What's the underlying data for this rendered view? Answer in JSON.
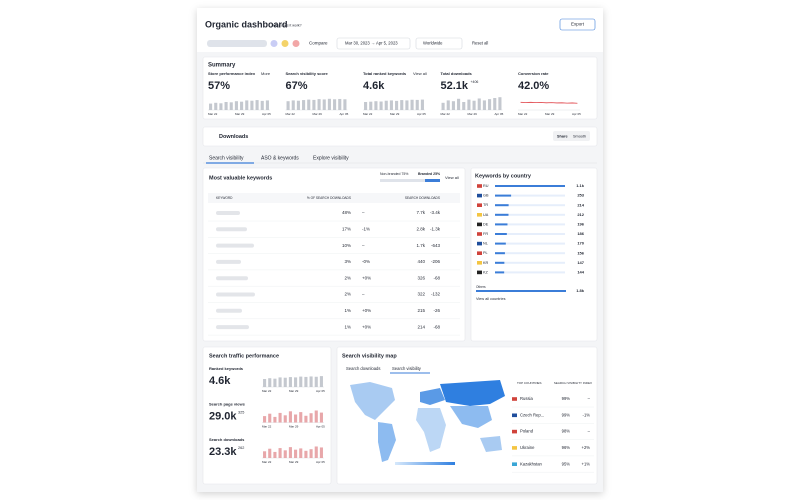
{
  "header": {
    "title": "Organic dashboard",
    "help": "How does it work?",
    "export": "Export"
  },
  "toolbar": {
    "compare": "Compare",
    "date_range": "Mar 30, 2023 → Apr 5, 2023",
    "region": "Worldwide",
    "reset": "Reset all"
  },
  "summary": {
    "title": "Summary",
    "spark_dates": [
      "Mar 22",
      "Mar 29",
      "Apr 05"
    ],
    "bars_ylim": [
      0,
      100
    ],
    "cards": [
      {
        "label": "Store performance index",
        "link": "More",
        "value": "57%",
        "chart": "bar",
        "values": [
          40,
          45,
          42,
          50,
          48,
          55,
          52,
          60,
          58,
          62,
          57,
          60
        ]
      },
      {
        "label": "Search visibility score",
        "value": "67%",
        "chart": "bar",
        "values": [
          55,
          60,
          58,
          62,
          65,
          63,
          68,
          66,
          70,
          67,
          69,
          67
        ]
      },
      {
        "label": "Total ranked keywords",
        "link": "View all",
        "value": "4.6k",
        "chart": "bar",
        "values": [
          50,
          52,
          55,
          53,
          58,
          60,
          57,
          62,
          60,
          64,
          63,
          65
        ]
      },
      {
        "label": "Total downloads",
        "value": "52.1k",
        "delta": "+406",
        "chart": "bar",
        "values": [
          45,
          60,
          55,
          70,
          50,
          65,
          58,
          72,
          60,
          68,
          75,
          80
        ]
      },
      {
        "label": "Conversion rate",
        "value": "42.0%",
        "chart": "line",
        "values": [
          48,
          47,
          48,
          46,
          47,
          45,
          46,
          44,
          45,
          43,
          44,
          42
        ]
      }
    ]
  },
  "downloads": {
    "title": "Downloads",
    "toggles": [
      "Share",
      "Smooth"
    ]
  },
  "tabs": [
    "Search visibility",
    "ASO & keywords",
    "Explore visibility"
  ],
  "keywords": {
    "title": "Most valuable keywords",
    "legend": [
      "Non-branded 75%",
      "Branded 25%"
    ],
    "link": "View all",
    "columns": [
      "KEYWORD",
      "% OF SEARCH DOWNLOADS",
      "SEARCH DOWNLOADS"
    ],
    "rows": [
      [
        "48%",
        "–",
        "7.7k",
        "-3.4k"
      ],
      [
        "17%",
        "-1%",
        "2.8k",
        "-1.3k"
      ],
      [
        "10%",
        "–",
        "1.7k",
        "-643"
      ],
      [
        "3%",
        "-0%",
        "440",
        "-206"
      ],
      [
        "2%",
        "+0%",
        "326",
        "-68"
      ],
      [
        "2%",
        "–",
        "322",
        "-132"
      ],
      [
        "1%",
        "+0%",
        "215",
        "-26"
      ],
      [
        "1%",
        "+0%",
        "214",
        "-68"
      ]
    ]
  },
  "countries": {
    "title": "Keywords by country",
    "codes": [
      "RU",
      "GB",
      "TR",
      "UA",
      "DE",
      "FR",
      "NL",
      "PL",
      "KR",
      "KZ"
    ],
    "values": [
      1100,
      253,
      214,
      212,
      196,
      186,
      170,
      156,
      147,
      144
    ],
    "value_labels": [
      "1.1k",
      "253",
      "214",
      "212",
      "196",
      "186",
      "170",
      "156",
      "147",
      "144"
    ],
    "xlim": [
      0,
      1100
    ],
    "others": {
      "label": "Others",
      "value": 1800,
      "value_label": "1.8k",
      "xlim": [
        0,
        1800
      ]
    },
    "link": "View all countries"
  },
  "traffic": {
    "title": "Search traffic performance",
    "ylim": [
      0,
      100
    ],
    "items": [
      {
        "label": "Ranked keywords",
        "value": "4.6k",
        "values": [
          50,
          55,
          52,
          60,
          58,
          62,
          60,
          65,
          63,
          66,
          64,
          68
        ]
      },
      {
        "label": "Search page views",
        "value": "29.0k",
        "delta": "325",
        "values": [
          40,
          55,
          35,
          60,
          45,
          70,
          50,
          65,
          42,
          58,
          75,
          62
        ]
      },
      {
        "label": "Search downloads",
        "value": "23.3k",
        "delta": "262",
        "values": [
          42,
          58,
          38,
          62,
          48,
          68,
          52,
          60,
          45,
          55,
          72,
          66
        ]
      }
    ]
  },
  "map": {
    "title": "Search visibility map",
    "tabs": [
      "Search downloads",
      "Search visibility"
    ],
    "columns": [
      "TOP COUNTRIES",
      "SEARCH VISIBILITY INDEX"
    ],
    "rows": [
      [
        "Russia",
        "99%",
        "–"
      ],
      [
        "Czech Rep...",
        "99%",
        "-1%"
      ],
      [
        "Poland",
        "98%",
        "–"
      ],
      [
        "Ukraine",
        "96%",
        "+2%"
      ],
      [
        "Kazakhstan",
        "95%",
        "+1%"
      ]
    ]
  }
}
